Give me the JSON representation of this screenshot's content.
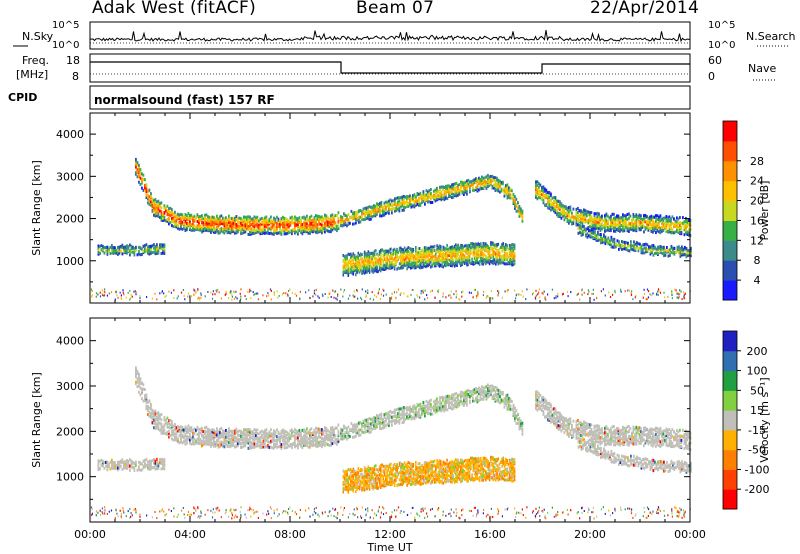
{
  "header": {
    "station": "Adak West (fitACF)",
    "beam": "Beam 07",
    "date": "22/Apr/2014"
  },
  "panels": {
    "nsky": {
      "left_label": "N.Sky",
      "right_label": "N.Search",
      "left_ticks": [
        "10^5",
        "10^0"
      ],
      "right_ticks": [
        "10^5",
        "10^0"
      ]
    },
    "freq": {
      "left_label_1": "Freq.",
      "left_label_2": "[MHz]",
      "right_label": "Nave",
      "left_ticks": [
        "18",
        "8"
      ],
      "right_ticks": [
        "60",
        "0"
      ]
    },
    "cpid": {
      "label": "CPID",
      "text": "normalsound (fast) 157 RF"
    }
  },
  "chart_data": [
    {
      "type": "heatmap",
      "title": "",
      "xlabel": "",
      "ylabel": "Slant Range [km]",
      "xlim": [
        "00:00",
        "24:00"
      ],
      "ylim": [
        0,
        4500
      ],
      "yticks": [
        1000,
        2000,
        3000,
        4000
      ],
      "colorbar": {
        "label": "Power [dB]",
        "ticks": [
          "4",
          "8",
          "12",
          "16",
          "20",
          "24",
          "28"
        ],
        "colors": [
          "#1a1aff",
          "#2a4fb0",
          "#3c8a8a",
          "#38b048",
          "#c8d820",
          "#ffc000",
          "#ff9000",
          "#ff5000",
          "#ff0000"
        ]
      },
      "echo_bands": [
        {
          "name": "far band",
          "x": [
            1.8,
            2.5,
            3.5,
            5,
            6.5,
            8,
            9.5,
            9.9
          ],
          "y": [
            3250,
            2300,
            1950,
            1880,
            1850,
            1850,
            1900,
            1950
          ]
        },
        {
          "name": "near band",
          "x": [
            0.3,
            1,
            2,
            3
          ],
          "y": [
            1250,
            1250,
            1260,
            1280
          ]
        },
        {
          "name": "rising band",
          "x": [
            10,
            12,
            14,
            16,
            16.8,
            17.3
          ],
          "y": [
            1950,
            2300,
            2600,
            2900,
            2600,
            2000
          ]
        },
        {
          "name": "lower patch",
          "x": [
            10.1,
            12,
            14,
            16,
            17
          ],
          "y": [
            900,
            1050,
            1120,
            1200,
            1150
          ]
        },
        {
          "name": "evening band",
          "x": [
            17.8,
            19,
            20.5,
            22,
            24
          ],
          "y": [
            2700,
            2100,
            1900,
            1900,
            1800
          ]
        },
        {
          "name": "evening lower",
          "x": [
            19.5,
            21,
            22.5,
            24
          ],
          "y": [
            1750,
            1400,
            1250,
            1200
          ]
        }
      ]
    },
    {
      "type": "heatmap",
      "title": "",
      "xlabel": "Time UT",
      "ylabel": "Slant Range [km]",
      "xlim": [
        "00:00",
        "24:00"
      ],
      "ylim": [
        0,
        4500
      ],
      "yticks": [
        1000,
        2000,
        3000,
        4000
      ],
      "xticks": [
        "00:00",
        "04:00",
        "08:00",
        "12:00",
        "16:00",
        "20:00",
        "00:00"
      ],
      "colorbar": {
        "label": "Velocity [m s⁻¹]",
        "ticks": [
          "200",
          "100",
          "50",
          "15",
          "-15",
          "-50",
          "-100",
          "-200"
        ],
        "colors": [
          "#2020c0",
          "#3070b0",
          "#20a040",
          "#80d040",
          "#c0c0b8",
          "#ffb000",
          "#ff8000",
          "#ff4000",
          "#ff0000"
        ]
      }
    }
  ]
}
